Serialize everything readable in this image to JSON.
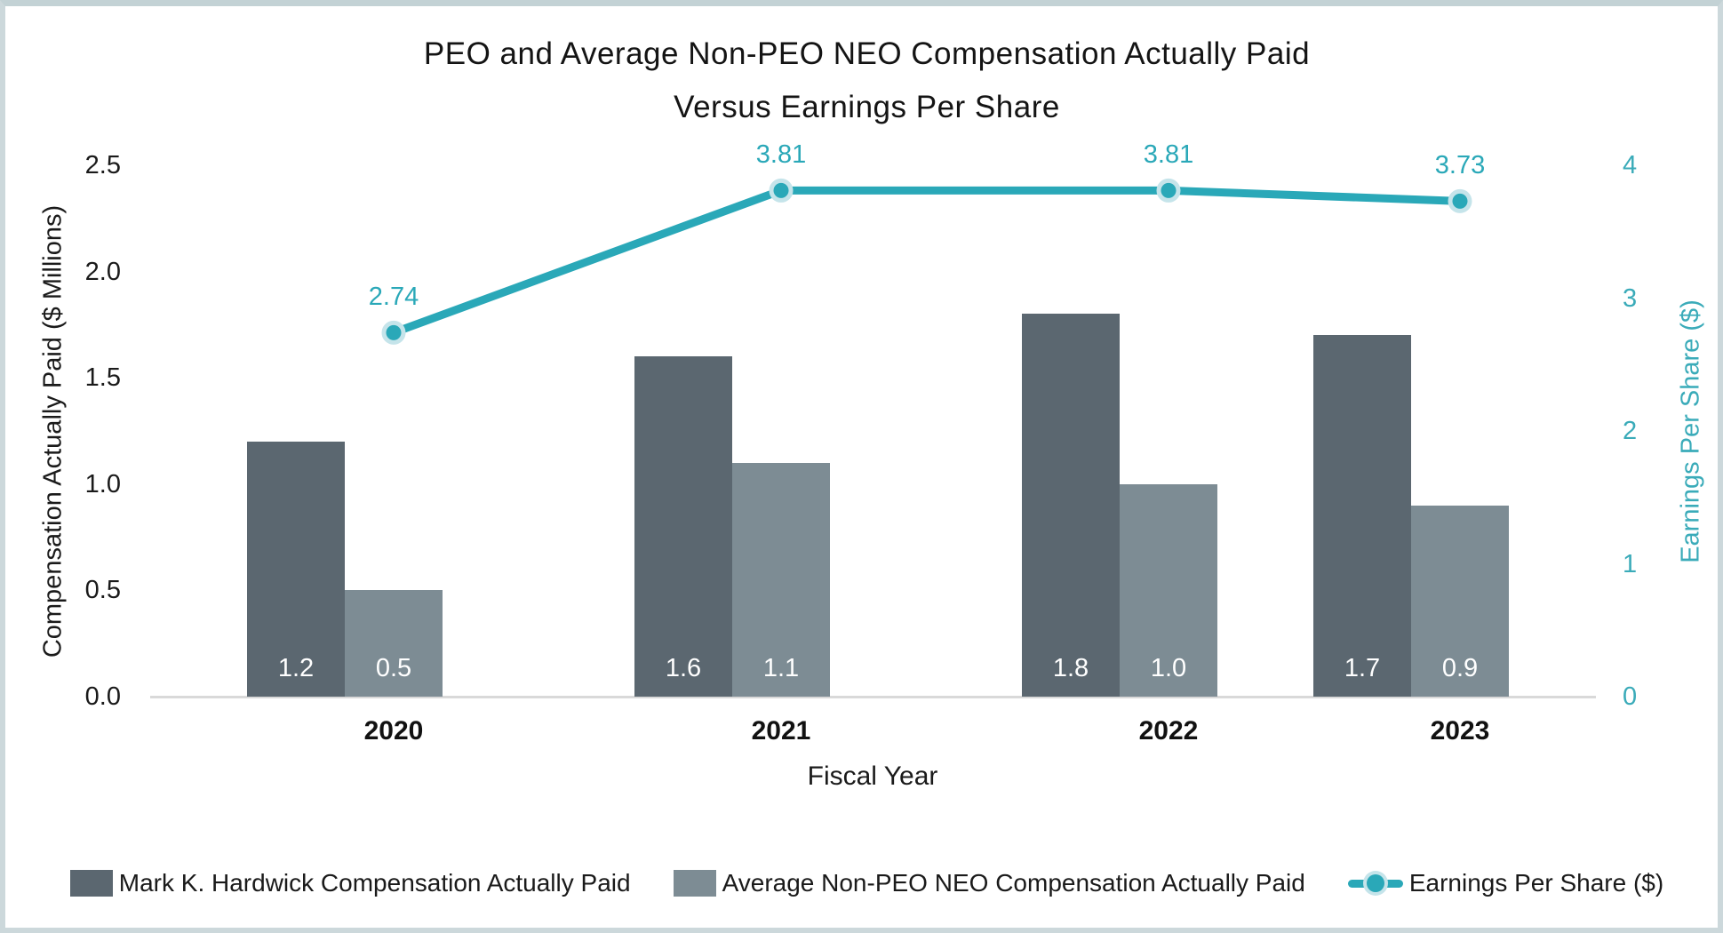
{
  "chart_data": {
    "type": "combo-bar-line",
    "title_lines": [
      "PEO and Average Non-PEO NEO Compensation Actually Paid",
      "Versus Earnings Per Share"
    ],
    "categories": [
      "2020",
      "2021",
      "2022",
      "2023"
    ],
    "series": [
      {
        "name": "Mark K. Hardwick Compensation Actually Paid",
        "type": "bar",
        "axis": "left",
        "color": "#5b6770",
        "values": [
          1.2,
          1.6,
          1.8,
          1.7
        ],
        "labels": [
          "1.2",
          "1.6",
          "1.8",
          "1.7"
        ]
      },
      {
        "name": "Average Non-PEO NEO Compensation Actually Paid",
        "type": "bar",
        "axis": "left",
        "color": "#7d8c94",
        "values": [
          0.5,
          1.1,
          1.0,
          0.9
        ],
        "labels": [
          "0.5",
          "1.1",
          "1.0",
          "0.9"
        ]
      },
      {
        "name": "Earnings Per Share ($)",
        "type": "line",
        "axis": "right",
        "color": "#2aa8b8",
        "marker_ring_color": "#c5e4ea",
        "values": [
          2.74,
          3.81,
          3.81,
          3.73
        ],
        "labels": [
          "2.74",
          "3.81",
          "3.81",
          "3.73"
        ]
      }
    ],
    "xlabel": "Fiscal Year",
    "left_axis": {
      "label": "Compensation Actually Paid ($ Millions)",
      "min": 0,
      "max": 2.5,
      "step": 0.5,
      "decimals": 1,
      "text_color": "#1a1a1a"
    },
    "right_axis": {
      "label": "Earnings Per Share ($)",
      "min": 0,
      "max": 4,
      "step": 1,
      "decimals": 0,
      "text_color": "#3aabb9"
    },
    "bar_value_label_color": "#ffffff",
    "axis_line_color": "#d9d9d9",
    "frame_color": "#ccd8db",
    "grid": false,
    "legend_position": "bottom"
  }
}
